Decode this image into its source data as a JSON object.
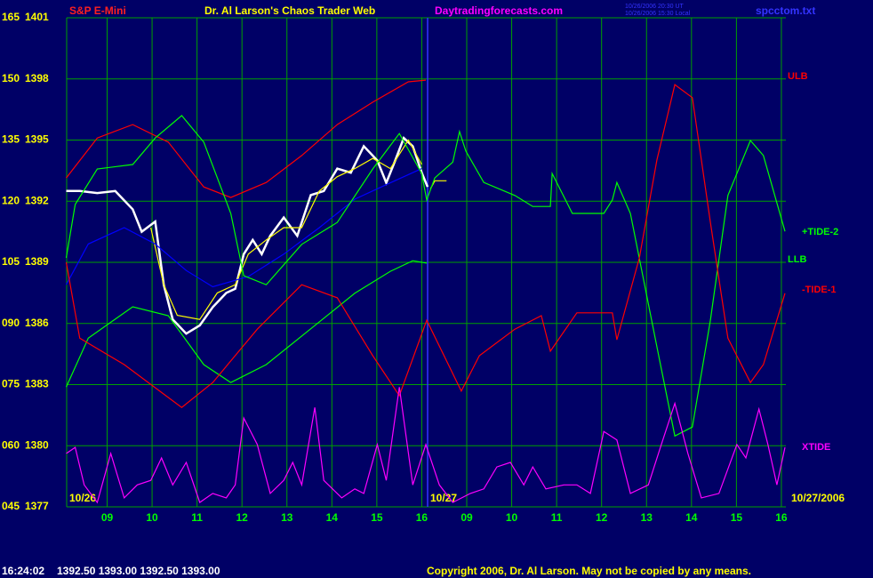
{
  "chart_data": {
    "type": "line",
    "title": "Dr. Al Larson's Chaos Trader Web",
    "symbol": "S&P E-Mini",
    "site": "Daytradingforecasts.com",
    "timestamp_lines": [
      "10/26/2006 20:30 UT",
      "10/26/2006 15:30 Local"
    ],
    "file_name": "spcctom.txt",
    "day_labels": [
      "10/26",
      "10/27",
      "10/27/2006"
    ],
    "status_time": "16:24:02",
    "status_quote": "1392.50 1393.00 1392.50 1393.00",
    "copyright": "Copyright 2006, Dr. Al Larson. May not be copied by any means.",
    "grid": true,
    "xlim": [
      0.1,
      16.1
    ],
    "xticks": [
      {
        "value": 1,
        "label": "09"
      },
      {
        "value": 2,
        "label": "10"
      },
      {
        "value": 3,
        "label": "11"
      },
      {
        "value": 4,
        "label": "12"
      },
      {
        "value": 5,
        "label": "13"
      },
      {
        "value": 6,
        "label": "14"
      },
      {
        "value": 7,
        "label": "15"
      },
      {
        "value": 8,
        "label": "16"
      },
      {
        "value": 9,
        "label": "09"
      },
      {
        "value": 10,
        "label": "10"
      },
      {
        "value": 11,
        "label": "11"
      },
      {
        "value": 12,
        "label": "12"
      },
      {
        "value": 13,
        "label": "13"
      },
      {
        "value": 14,
        "label": "14"
      },
      {
        "value": 15,
        "label": "15"
      },
      {
        "value": 16,
        "label": "16"
      }
    ],
    "ylim": [
      45,
      165
    ],
    "yticks": [
      165,
      150,
      135,
      120,
      105,
      {
        "value": 90,
        "label": "090"
      },
      {
        "value": 75,
        "label": "075"
      },
      {
        "value": 60,
        "label": "060"
      },
      {
        "value": 45,
        "label": "045"
      }
    ],
    "y2lim": [
      1377,
      1401
    ],
    "y2ticks": [
      1401,
      1398,
      1395,
      1392,
      1389,
      1386,
      1383,
      1380,
      1377
    ],
    "series": [
      {
        "color": "#ffffff",
        "axis": "y2",
        "x": [
          0.09,
          0.39,
          0.78,
          1.18,
          1.57,
          1.77,
          2.07,
          2.26,
          2.46,
          2.76,
          3.06,
          3.35,
          3.65,
          3.85,
          4.04,
          4.24,
          4.44,
          4.63,
          4.93,
          5.23,
          5.53,
          5.82,
          6.12,
          6.42,
          6.71,
          7.01,
          7.21,
          7.41,
          7.6,
          7.8,
          8.0,
          8.13
        ],
        "values": [
          1392.5,
          1392.5,
          1392.4,
          1392.5,
          1391.6,
          1390.5,
          1391.0,
          1387.9,
          1386.2,
          1385.5,
          1385.9,
          1386.8,
          1387.5,
          1387.7,
          1389.4,
          1390.1,
          1389.4,
          1390.3,
          1391.2,
          1390.3,
          1392.3,
          1392.5,
          1393.6,
          1393.4,
          1394.7,
          1394.0,
          1392.9,
          1394.0,
          1395.1,
          1394.7,
          1393.4,
          1392.7
        ]
      },
      {
        "color": "#ffff00",
        "axis": "y2",
        "x": [
          1.97,
          2.26,
          2.56,
          3.06,
          3.45,
          3.85,
          4.14,
          4.54,
          4.93,
          5.33,
          5.72,
          6.12,
          6.51,
          6.91,
          7.3,
          7.7,
          8.0,
          null,
          8.19,
          8.29,
          8.55
        ],
        "values": [
          1390.7,
          1387.9,
          1386.4,
          1386.2,
          1387.5,
          1387.9,
          1389.4,
          1390.1,
          1390.7,
          1390.7,
          1392.5,
          1393.2,
          1393.6,
          1394.1,
          1393.6,
          1395.0,
          1393.8,
          null,
          1392.6,
          1393.0,
          1393.0
        ]
      },
      {
        "color": "#0000ff",
        "axis": "y2",
        "x": [
          0.09,
          0.58,
          1.38,
          2.07,
          2.76,
          3.35,
          4.14,
          4.93,
          5.72,
          6.51,
          7.3,
          8.0
        ],
        "values": [
          1387.9,
          1389.9,
          1390.7,
          1389.9,
          1388.6,
          1387.8,
          1388.3,
          1389.4,
          1390.7,
          1392.1,
          1392.9,
          1393.6
        ]
      },
      {
        "name": "ULB",
        "color": "#ff0000",
        "x": [
          0.09,
          0.78,
          1.57,
          2.36,
          3.15,
          3.75,
          4.54,
          5.33,
          6.12,
          6.91,
          7.7,
          8.09
        ],
        "values": [
          125.7,
          135.5,
          138.8,
          134.5,
          123.5,
          120.9,
          124.6,
          131.2,
          138.8,
          144.3,
          149.3,
          149.7
        ]
      },
      {
        "name": "+TIDE-2",
        "color": "#00ff00",
        "x": [
          0.09,
          0.29,
          0.78,
          1.57,
          2.07,
          2.66,
          3.15,
          3.75,
          4.04,
          4.54,
          5.33,
          6.12,
          6.91,
          7.5,
          8.0,
          8.11,
          8.29,
          8.69,
          8.84,
          8.98,
          9.38,
          10.07,
          10.47,
          10.86,
          10.9,
          11.35,
          12.05,
          12.24,
          12.34,
          12.64,
          13.23,
          13.63,
          14.02,
          14.42,
          14.81,
          15.31,
          15.6,
          16.08
        ],
        "values": [
          106.1,
          119.2,
          127.9,
          129.0,
          135.5,
          141.0,
          134.5,
          117.0,
          101.7,
          99.5,
          109.4,
          114.8,
          127.9,
          136.6,
          126.8,
          120.3,
          125.7,
          129.6,
          137.1,
          132.3,
          124.6,
          121.4,
          118.7,
          118.7,
          126.8,
          117.0,
          117.0,
          120.3,
          124.6,
          117.0,
          84.3,
          62.4,
          64.6,
          90.8,
          121.4,
          134.9,
          131.2,
          112.6
        ]
      },
      {
        "name": "LLB",
        "color": "#00ff00",
        "x": [
          0.09,
          0.58,
          1.57,
          2.36,
          3.15,
          3.75,
          4.54,
          5.52,
          6.51,
          7.3,
          7.8,
          8.11
        ],
        "values": [
          74.4,
          86.4,
          94.1,
          91.9,
          79.9,
          75.5,
          79.9,
          88.6,
          97.4,
          102.8,
          105.4,
          104.8
        ]
      },
      {
        "name": "-TIDE-1",
        "color": "#ff0000",
        "x": [
          0.09,
          0.39,
          1.38,
          2.66,
          3.35,
          4.34,
          5.33,
          6.12,
          6.91,
          7.5,
          8.11,
          8.88,
          9.28,
          10.07,
          10.66,
          10.86,
          11.45,
          12.24,
          12.34,
          12.84,
          13.23,
          13.63,
          14.02,
          14.42,
          14.81,
          15.31,
          15.6,
          16.08
        ],
        "values": [
          105.0,
          86.4,
          79.9,
          69.4,
          75.5,
          88.6,
          99.5,
          96.3,
          82.1,
          72.3,
          90.8,
          73.4,
          82.1,
          88.6,
          91.9,
          83.2,
          92.6,
          92.6,
          86.0,
          106.1,
          130.1,
          148.6,
          145.4,
          114.8,
          86.4,
          75.5,
          79.9,
          97.4
        ]
      },
      {
        "name": "XTIDE",
        "color": "#ff00ff",
        "x": [
          0.09,
          0.29,
          0.49,
          0.78,
          1.08,
          1.38,
          1.67,
          1.97,
          2.21,
          2.46,
          2.76,
          3.06,
          3.35,
          3.65,
          3.85,
          4.04,
          4.34,
          4.63,
          4.93,
          5.13,
          5.33,
          5.62,
          5.82,
          6.22,
          6.51,
          6.71,
          7.01,
          7.21,
          7.5,
          7.8,
          8.09,
          8.39,
          8.69,
          9.08,
          9.38,
          9.67,
          9.97,
          10.27,
          10.47,
          10.76,
          11.16,
          11.45,
          11.75,
          12.05,
          12.34,
          12.64,
          13.04,
          13.33,
          13.63,
          13.92,
          14.22,
          14.61,
          15.01,
          15.21,
          15.5,
          15.7,
          15.9,
          16.08
        ],
        "values": [
          58.1,
          59.6,
          50.4,
          46.1,
          58.1,
          47.2,
          50.4,
          51.5,
          57.0,
          50.4,
          55.9,
          46.1,
          48.3,
          47.2,
          50.4,
          66.8,
          60.3,
          48.3,
          51.5,
          55.9,
          50.4,
          69.4,
          51.5,
          47.2,
          49.4,
          48.3,
          60.3,
          51.5,
          74.4,
          50.4,
          60.3,
          50.4,
          46.1,
          48.3,
          49.4,
          54.8,
          55.9,
          50.4,
          54.8,
          49.4,
          50.4,
          50.4,
          48.3,
          63.5,
          61.4,
          48.3,
          50.4,
          60.3,
          70.4,
          58.1,
          47.2,
          48.3,
          60.3,
          57.0,
          69.0,
          60.3,
          50.4,
          59.6
        ]
      }
    ]
  }
}
